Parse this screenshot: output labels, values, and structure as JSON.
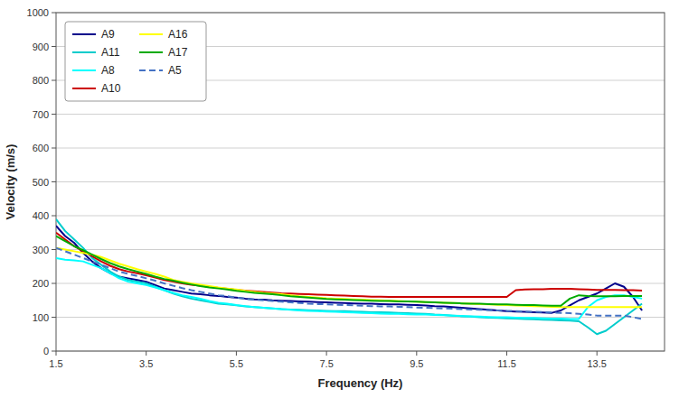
{
  "chart_data": {
    "type": "line",
    "xlabel": "Frequency (Hz)",
    "ylabel": "Velocity (m/s)",
    "xlim": [
      1.5,
      15.0
    ],
    "ylim": [
      0,
      1000
    ],
    "xticks": [
      1.5,
      3.5,
      5.5,
      7.5,
      9.5,
      11.5,
      13.5
    ],
    "yticks": [
      0,
      100,
      200,
      300,
      400,
      500,
      600,
      700,
      800,
      900,
      1000
    ],
    "grid": "y",
    "legend": "upper left",
    "x": [
      1.5,
      1.7,
      1.9,
      2.1,
      2.3,
      2.5,
      2.7,
      2.9,
      3.1,
      3.3,
      3.5,
      3.7,
      3.9,
      4.1,
      4.3,
      4.5,
      4.7,
      4.9,
      5.1,
      5.3,
      5.5,
      5.7,
      5.9,
      6.1,
      6.3,
      6.5,
      6.7,
      6.9,
      7.1,
      7.3,
      7.5,
      7.7,
      7.9,
      8.1,
      8.3,
      8.5,
      8.7,
      8.9,
      9.1,
      9.3,
      9.5,
      9.7,
      9.9,
      10.1,
      10.3,
      10.5,
      10.7,
      10.9,
      11.1,
      11.3,
      11.5,
      11.7,
      11.9,
      12.1,
      12.3,
      12.5,
      12.7,
      12.9,
      13.1,
      13.3,
      13.5,
      13.7,
      13.9,
      14.1,
      14.3,
      14.5
    ],
    "series": [
      {
        "name": "A9",
        "color": "#00008B",
        "line_style": "solid",
        "values": [
          370,
          340,
          320,
          290,
          265,
          245,
          230,
          220,
          215,
          210,
          205,
          195,
          185,
          180,
          175,
          170,
          168,
          165,
          163,
          160,
          158,
          155,
          153,
          152,
          150,
          149,
          148,
          147,
          146,
          145,
          144,
          143,
          142,
          141,
          140,
          140,
          139,
          138,
          138,
          137,
          136,
          135,
          133,
          132,
          130,
          128,
          126,
          124,
          122,
          120,
          118,
          117,
          116,
          115,
          114,
          113,
          120,
          135,
          150,
          160,
          170,
          185,
          200,
          190,
          160,
          120
        ]
      },
      {
        "name": "A11",
        "color": "#00CCCC",
        "line_style": "solid",
        "values": [
          390,
          355,
          330,
          305,
          275,
          255,
          235,
          220,
          210,
          205,
          200,
          190,
          180,
          170,
          162,
          155,
          150,
          145,
          140,
          138,
          135,
          132,
          130,
          128,
          126,
          124,
          123,
          122,
          121,
          120,
          119,
          118,
          118,
          117,
          116,
          115,
          115,
          114,
          113,
          112,
          111,
          110,
          108,
          107,
          105,
          103,
          102,
          100,
          99,
          98,
          97,
          96,
          95,
          94,
          93,
          92,
          91,
          90,
          88,
          70,
          50,
          60,
          80,
          100,
          120,
          140
        ]
      },
      {
        "name": "A8",
        "color": "#00FFFF",
        "line_style": "solid",
        "values": [
          275,
          270,
          268,
          265,
          255,
          245,
          230,
          215,
          205,
          200,
          195,
          188,
          180,
          172,
          165,
          160,
          155,
          148,
          143,
          140,
          136,
          133,
          130,
          128,
          126,
          124,
          122,
          120,
          119,
          118,
          117,
          116,
          115,
          114,
          113,
          112,
          111,
          110,
          110,
          109,
          108,
          108,
          107,
          106,
          105,
          104,
          103,
          102,
          101,
          100,
          100,
          99,
          98,
          98,
          97,
          96,
          96,
          95,
          95,
          130,
          150,
          160,
          165,
          165,
          160,
          155
        ]
      },
      {
        "name": "A10",
        "color": "#CC0000",
        "line_style": "solid",
        "values": [
          350,
          330,
          310,
          295,
          280,
          265,
          252,
          242,
          235,
          230,
          224,
          217,
          210,
          205,
          200,
          196,
          193,
          190,
          187,
          184,
          181,
          179,
          177,
          175,
          173,
          171,
          170,
          169,
          168,
          167,
          166,
          165,
          164,
          163,
          162,
          161,
          161,
          160,
          160,
          160,
          160,
          160,
          160,
          160,
          160,
          160,
          160,
          160,
          160,
          160,
          160,
          180,
          182,
          183,
          183,
          184,
          184,
          184,
          183,
          182,
          181,
          181,
          181,
          180,
          180,
          179
        ]
      },
      {
        "name": "A16",
        "color": "#FFFF00",
        "line_style": "solid",
        "values": [
          305,
          300,
          295,
          290,
          285,
          278,
          268,
          258,
          250,
          242,
          235,
          228,
          220,
          210,
          205,
          200,
          196,
          192,
          188,
          185,
          182,
          178,
          175,
          172,
          170,
          168,
          165,
          162,
          160,
          158,
          156,
          155,
          154,
          153,
          152,
          151,
          150,
          149,
          148,
          147,
          146,
          145,
          144,
          143,
          142,
          141,
          140,
          139,
          138,
          137,
          136,
          135,
          134,
          133,
          132,
          131,
          130,
          130,
          130,
          130,
          130,
          130,
          130,
          130,
          130,
          130
        ]
      },
      {
        "name": "A17",
        "color": "#00AA00",
        "line_style": "solid",
        "values": [
          340,
          325,
          310,
          298,
          285,
          272,
          260,
          250,
          242,
          235,
          228,
          220,
          213,
          208,
          202,
          197,
          192,
          188,
          185,
          182,
          178,
          175,
          172,
          170,
          168,
          165,
          162,
          160,
          158,
          156,
          154,
          153,
          152,
          151,
          150,
          149,
          148,
          148,
          147,
          147,
          146,
          145,
          144,
          143,
          142,
          141,
          140,
          140,
          139,
          138,
          138,
          137,
          136,
          136,
          135,
          134,
          134,
          155,
          165,
          163,
          162,
          162,
          162,
          163,
          163,
          163
        ]
      },
      {
        "name": "A5",
        "color": "#4472C4",
        "line_style": "dashed",
        "values": [
          305,
          295,
          285,
          275,
          265,
          255,
          245,
          235,
          228,
          222,
          215,
          208,
          200,
          193,
          186,
          180,
          175,
          170,
          165,
          162,
          158,
          155,
          152,
          150,
          148,
          146,
          144,
          142,
          140,
          139,
          138,
          137,
          136,
          135,
          134,
          133,
          132,
          132,
          131,
          130,
          129,
          128,
          127,
          126,
          125,
          124,
          123,
          122,
          121,
          120,
          119,
          118,
          117,
          116,
          115,
          114,
          113,
          112,
          110,
          108,
          105,
          105,
          105,
          105,
          100,
          95
        ]
      }
    ]
  }
}
